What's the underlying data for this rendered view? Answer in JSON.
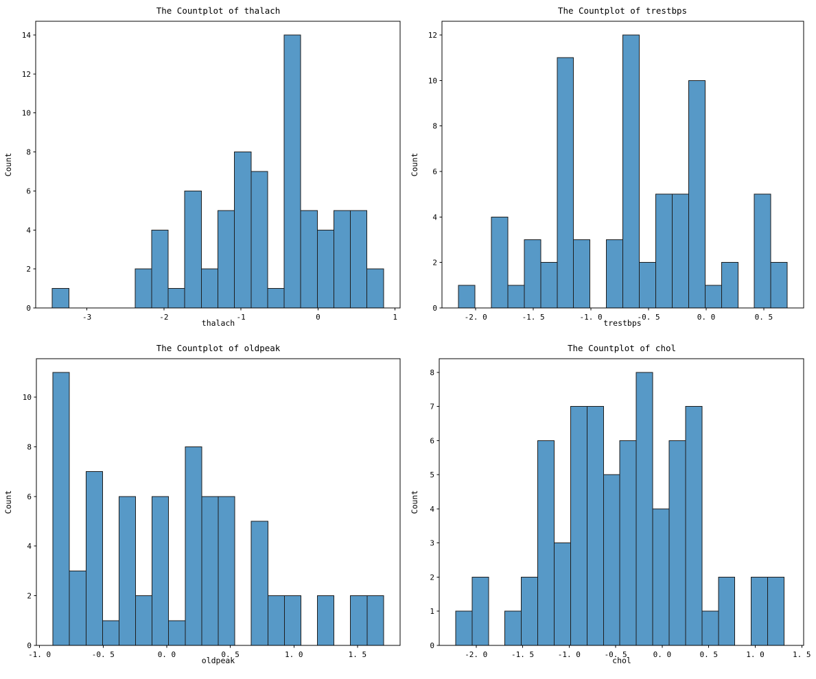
{
  "colors": {
    "background": "#ffffff",
    "bar_fill": "#5799c7",
    "bar_edge": "#1c1c1c",
    "axis": "#000000",
    "text": "#000000"
  },
  "chart_data": [
    {
      "type": "bar",
      "subtype": "histogram",
      "title": "The Countplot of thalach",
      "xlabel": "thalach",
      "ylabel": "Count",
      "bin_start": -3.45,
      "bin_width": 0.215,
      "counts": [
        1,
        0,
        0,
        0,
        0,
        2,
        4,
        1,
        6,
        2,
        5,
        8,
        7,
        1,
        14,
        5,
        4,
        5,
        5,
        2
      ],
      "xlim": [
        -3.665,
        1.065
      ],
      "ylim": [
        0,
        14.7
      ],
      "xtick_values": [
        -3,
        -2,
        -1,
        0,
        1
      ],
      "xtick_labels": [
        "-3",
        "-2",
        "-1",
        "0",
        "1"
      ],
      "ytick_values": [
        0,
        2,
        4,
        6,
        8,
        10,
        12,
        14
      ],
      "ytick_labels": [
        "0",
        "2",
        "4",
        "6",
        "8",
        "10",
        "12",
        "14"
      ],
      "grid": false,
      "legend": null
    },
    {
      "type": "bar",
      "subtype": "histogram",
      "title": "The Countplot of trestbps",
      "xlabel": "trestbps",
      "ylabel": "Count",
      "bin_start": -2.15,
      "bin_width": 0.1427,
      "counts": [
        1,
        0,
        4,
        1,
        3,
        2,
        11,
        3,
        0,
        3,
        12,
        2,
        5,
        5,
        10,
        1,
        2,
        0,
        5,
        2
      ],
      "xlim": [
        -2.293,
        0.846
      ],
      "ylim": [
        0,
        12.6
      ],
      "xtick_values": [
        -2.0,
        -1.5,
        -1.0,
        -0.5,
        0.0,
        0.5
      ],
      "xtick_labels": [
        "-2. 0",
        "-1. 5",
        "-1. 0",
        "-0. 5",
        "0. 0",
        "0. 5"
      ],
      "ytick_values": [
        0,
        2,
        4,
        6,
        8,
        10,
        12
      ],
      "ytick_labels": [
        "0",
        "2",
        "4",
        "6",
        "8",
        "10",
        "12"
      ],
      "grid": false,
      "legend": null
    },
    {
      "type": "bar",
      "subtype": "histogram",
      "title": "The Countplot of oldpeak",
      "xlabel": "oldpeak",
      "ylabel": "Count",
      "bin_start": -0.895,
      "bin_width": 0.13,
      "counts": [
        11,
        3,
        7,
        1,
        6,
        2,
        6,
        1,
        8,
        6,
        6,
        0,
        5,
        2,
        2,
        0,
        2,
        0,
        2,
        2
      ],
      "xlim": [
        -1.025,
        1.835
      ],
      "ylim": [
        0,
        11.55
      ],
      "xtick_values": [
        -1.0,
        -0.5,
        0.0,
        0.5,
        1.0,
        1.5
      ],
      "xtick_labels": [
        "-1. 0",
        "-0. 5",
        "0. 0",
        "0. 5",
        "1. 0",
        "1. 5"
      ],
      "ytick_values": [
        0,
        2,
        4,
        6,
        8,
        10
      ],
      "ytick_labels": [
        "0",
        "2",
        "4",
        "6",
        "8",
        "10"
      ],
      "grid": false,
      "legend": null
    },
    {
      "type": "bar",
      "subtype": "histogram",
      "title": "The Countplot of chol",
      "xlabel": "chol",
      "ylabel": "Count",
      "bin_start": -2.22,
      "bin_width": 0.1765,
      "counts": [
        1,
        2,
        0,
        1,
        2,
        6,
        3,
        7,
        7,
        5,
        6,
        8,
        4,
        6,
        7,
        1,
        2,
        0,
        2,
        2
      ],
      "xlim": [
        -2.3965,
        1.52
      ],
      "ylim": [
        0,
        8.4
      ],
      "xtick_values": [
        -2.0,
        -1.5,
        -1.0,
        -0.5,
        0.0,
        0.5,
        1.0,
        1.5
      ],
      "xtick_labels": [
        "-2. 0",
        "-1. 5",
        "-1. 0",
        "-0. 5",
        "0. 0",
        "0. 5",
        "1. 0",
        "1. 5"
      ],
      "ytick_values": [
        0,
        1,
        2,
        3,
        4,
        5,
        6,
        7,
        8
      ],
      "ytick_labels": [
        "0",
        "1",
        "2",
        "3",
        "4",
        "5",
        "6",
        "7",
        "8"
      ],
      "grid": false,
      "legend": null
    }
  ]
}
